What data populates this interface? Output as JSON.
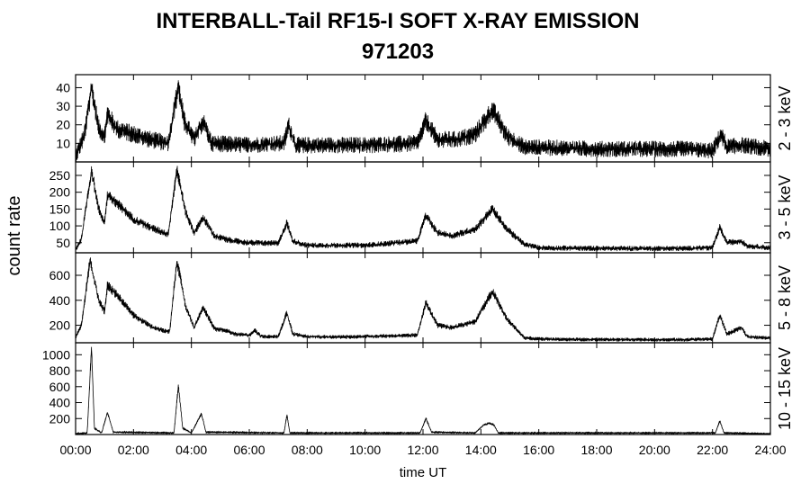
{
  "chart_data": {
    "type": "line",
    "title": "INTERBALL-Tail RF15-I SOFT X-RAY EMISSION",
    "subtitle": "971203",
    "xlabel": "time UT",
    "ylabel": "count rate",
    "x_ticks": [
      "00:00",
      "02:00",
      "04:00",
      "06:00",
      "08:00",
      "10:00",
      "12:00",
      "14:00",
      "16:00",
      "18:00",
      "20:00",
      "22:00",
      "24:00"
    ],
    "xlim": [
      0,
      24
    ],
    "panels": [
      {
        "name": "2 - 3 keV",
        "ylim": [
          0,
          47
        ],
        "yticks": [
          10,
          20,
          30,
          40
        ],
        "noise": 4,
        "points": [
          [
            0,
            3
          ],
          [
            0.3,
            14
          ],
          [
            0.55,
            40
          ],
          [
            0.8,
            18
          ],
          [
            1.0,
            14
          ],
          [
            1.1,
            26
          ],
          [
            1.4,
            18
          ],
          [
            2.0,
            15
          ],
          [
            2.6,
            12
          ],
          [
            3.2,
            10
          ],
          [
            3.55,
            41
          ],
          [
            3.75,
            22
          ],
          [
            4.1,
            12
          ],
          [
            4.4,
            22
          ],
          [
            4.7,
            10
          ],
          [
            6.0,
            9
          ],
          [
            7.2,
            10
          ],
          [
            7.35,
            20
          ],
          [
            7.6,
            9
          ],
          [
            10.0,
            9
          ],
          [
            11.8,
            10
          ],
          [
            12.1,
            22
          ],
          [
            12.5,
            12
          ],
          [
            13.2,
            12
          ],
          [
            13.8,
            15
          ],
          [
            14.4,
            28
          ],
          [
            14.9,
            14
          ],
          [
            15.5,
            8
          ],
          [
            18.0,
            7
          ],
          [
            21.0,
            7
          ],
          [
            22.0,
            6
          ],
          [
            22.3,
            15
          ],
          [
            22.5,
            8
          ],
          [
            23.0,
            9
          ],
          [
            24,
            7
          ]
        ]
      },
      {
        "name": "3 - 5 keV",
        "ylim": [
          20,
          290
        ],
        "yticks": [
          50,
          100,
          150,
          200,
          250
        ],
        "noise": 6,
        "points": [
          [
            0,
            30
          ],
          [
            0.2,
            60
          ],
          [
            0.55,
            265
          ],
          [
            0.8,
            150
          ],
          [
            1.0,
            110
          ],
          [
            1.1,
            190
          ],
          [
            1.4,
            170
          ],
          [
            2.0,
            120
          ],
          [
            2.6,
            95
          ],
          [
            3.2,
            75
          ],
          [
            3.5,
            270
          ],
          [
            3.8,
            140
          ],
          [
            4.1,
            80
          ],
          [
            4.4,
            125
          ],
          [
            4.8,
            70
          ],
          [
            5.2,
            60
          ],
          [
            5.5,
            55
          ],
          [
            6.0,
            50
          ],
          [
            7.0,
            48
          ],
          [
            7.3,
            110
          ],
          [
            7.5,
            55
          ],
          [
            8.0,
            42
          ],
          [
            10.0,
            42
          ],
          [
            11.8,
            55
          ],
          [
            12.1,
            130
          ],
          [
            12.5,
            80
          ],
          [
            13.0,
            70
          ],
          [
            13.8,
            90
          ],
          [
            14.4,
            150
          ],
          [
            14.9,
            90
          ],
          [
            15.5,
            45
          ],
          [
            16.0,
            35
          ],
          [
            18.0,
            33
          ],
          [
            21.0,
            33
          ],
          [
            22.0,
            35
          ],
          [
            22.25,
            95
          ],
          [
            22.5,
            50
          ],
          [
            23.0,
            55
          ],
          [
            23.2,
            40
          ],
          [
            24,
            35
          ]
        ]
      },
      {
        "name": "5 - 8 keV",
        "ylim": [
          60,
          780
        ],
        "yticks": [
          200,
          400,
          600
        ],
        "noise": 10,
        "points": [
          [
            0,
            100
          ],
          [
            0.2,
            200
          ],
          [
            0.5,
            720
          ],
          [
            0.8,
            400
          ],
          [
            1.0,
            310
          ],
          [
            1.1,
            520
          ],
          [
            1.4,
            450
          ],
          [
            2.0,
            280
          ],
          [
            2.6,
            190
          ],
          [
            3.0,
            160
          ],
          [
            3.25,
            150
          ],
          [
            3.5,
            720
          ],
          [
            3.8,
            350
          ],
          [
            4.1,
            180
          ],
          [
            4.4,
            350
          ],
          [
            4.8,
            170
          ],
          [
            5.2,
            160
          ],
          [
            5.5,
            130
          ],
          [
            6.0,
            120
          ],
          [
            6.2,
            160
          ],
          [
            6.4,
            110
          ],
          [
            7.0,
            110
          ],
          [
            7.3,
            300
          ],
          [
            7.5,
            130
          ],
          [
            8.0,
            110
          ],
          [
            9.0,
            105
          ],
          [
            10.0,
            110
          ],
          [
            11.0,
            115
          ],
          [
            11.8,
            120
          ],
          [
            12.1,
            380
          ],
          [
            12.5,
            200
          ],
          [
            13.0,
            180
          ],
          [
            13.8,
            230
          ],
          [
            14.4,
            470
          ],
          [
            14.9,
            250
          ],
          [
            15.5,
            100
          ],
          [
            16.0,
            90
          ],
          [
            18.0,
            85
          ],
          [
            21.0,
            85
          ],
          [
            22.0,
            90
          ],
          [
            22.25,
            280
          ],
          [
            22.5,
            130
          ],
          [
            23.0,
            180
          ],
          [
            23.2,
            110
          ],
          [
            24,
            95
          ]
        ]
      },
      {
        "name": "10 - 15 keV",
        "ylim": [
          0,
          1150
        ],
        "yticks": [
          200,
          400,
          600,
          800,
          1000
        ],
        "noise": 5,
        "points": [
          [
            0,
            10
          ],
          [
            0.4,
            20
          ],
          [
            0.55,
            1100
          ],
          [
            0.65,
            80
          ],
          [
            0.9,
            20
          ],
          [
            1.1,
            280
          ],
          [
            1.3,
            30
          ],
          [
            3.4,
            20
          ],
          [
            3.55,
            620
          ],
          [
            3.7,
            80
          ],
          [
            4.0,
            20
          ],
          [
            4.35,
            260
          ],
          [
            4.5,
            30
          ],
          [
            7.2,
            20
          ],
          [
            7.3,
            250
          ],
          [
            7.4,
            20
          ],
          [
            11.9,
            20
          ],
          [
            12.1,
            200
          ],
          [
            12.3,
            30
          ],
          [
            13.8,
            20
          ],
          [
            14.1,
            120
          ],
          [
            14.3,
            140
          ],
          [
            14.45,
            120
          ],
          [
            14.6,
            20
          ],
          [
            22.1,
            20
          ],
          [
            22.25,
            170
          ],
          [
            22.4,
            20
          ],
          [
            24,
            10
          ]
        ]
      }
    ]
  }
}
